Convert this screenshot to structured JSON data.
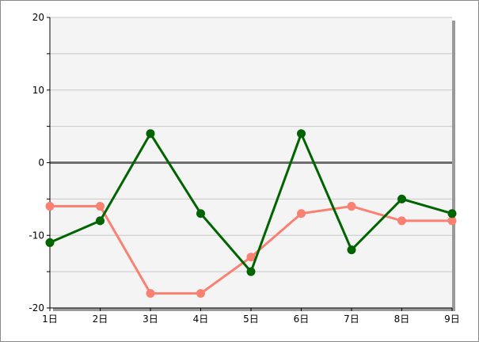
{
  "chart_data": {
    "type": "line",
    "categories": [
      "1日",
      "2日",
      "3日",
      "4日",
      "5日",
      "6日",
      "7日",
      "8日",
      "9日"
    ],
    "series": [
      {
        "values": [
          -11,
          -8,
          4,
          -7,
          -15,
          4,
          -12,
          -5,
          -7
        ],
        "color": "#006400"
      },
      {
        "values": [
          -6,
          -6,
          -18,
          -18,
          -13,
          -7,
          -6,
          -8,
          -8
        ],
        "color": "#fa8072"
      }
    ],
    "ylim": [
      -20,
      20
    ],
    "yticks": [
      20,
      10,
      0,
      -10,
      -20
    ],
    "yticklabels": [
      "20",
      "10",
      "0",
      "-10",
      "-20"
    ],
    "minor_grid_step": 5,
    "grid": true,
    "plot_background": "#f4f4f4",
    "zero_line_color": "#6e6e6e",
    "grid_color": "#c8c8c8"
  }
}
